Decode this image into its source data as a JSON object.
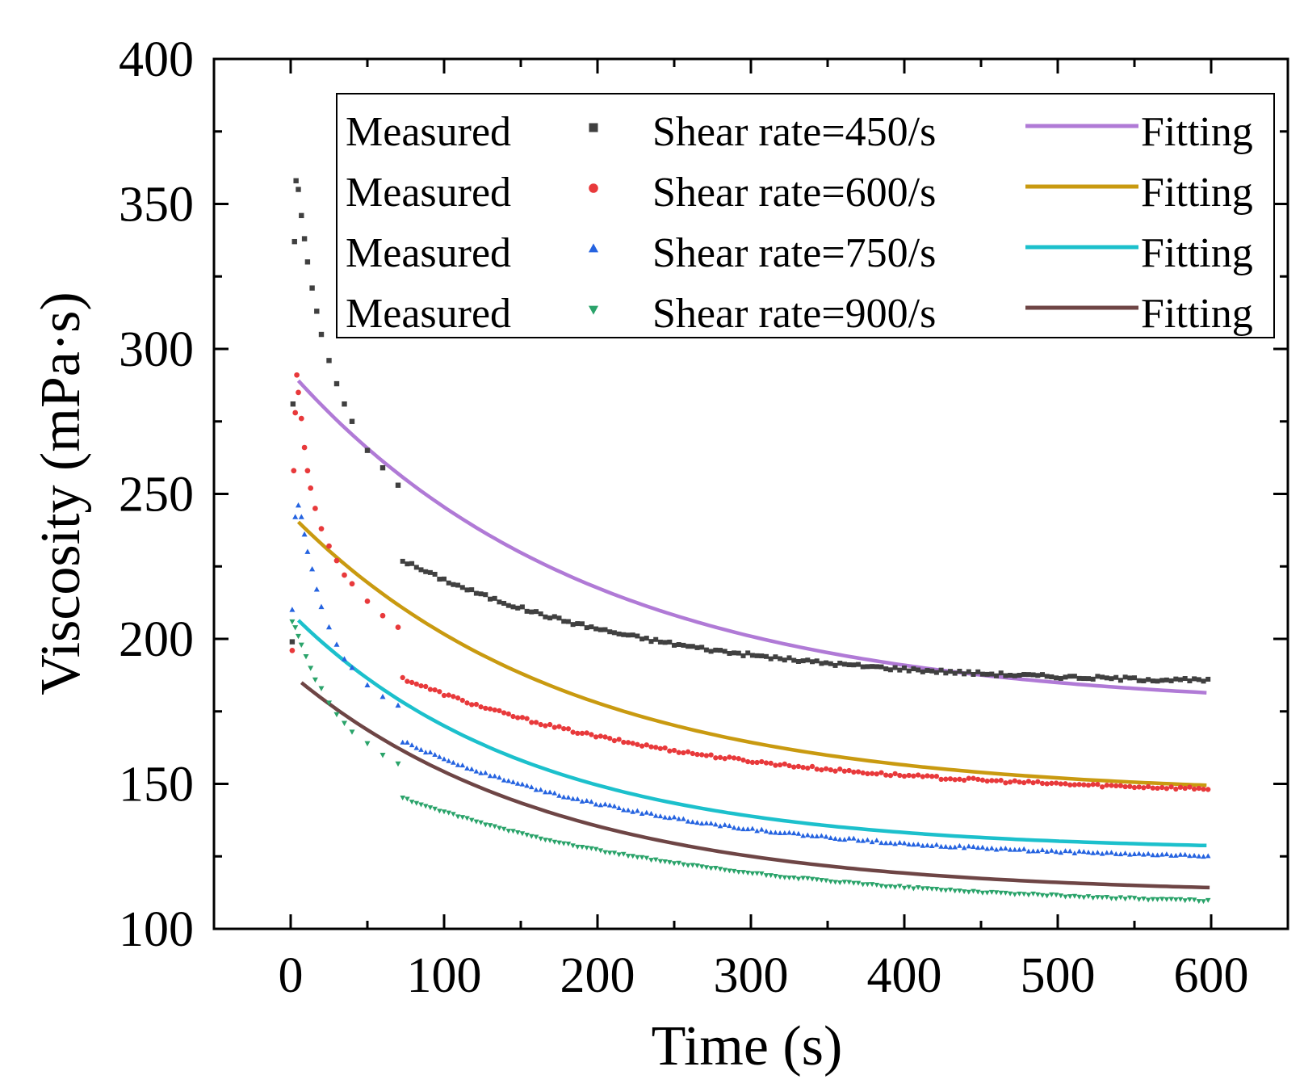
{
  "chart_data": {
    "type": "scatter",
    "title": "",
    "xlabel": "Time (s)",
    "ylabel": "Viscosity (mPa·s)",
    "xlim": [
      -50,
      650
    ],
    "ylim": [
      100,
      400
    ],
    "xticks": [
      0,
      100,
      200,
      300,
      400,
      500,
      600
    ],
    "yticks": [
      100,
      150,
      200,
      250,
      300,
      350,
      400
    ],
    "xtick_labels": [
      "0",
      "100",
      "200",
      "300",
      "400",
      "500",
      "600"
    ],
    "ytick_labels": [
      "100",
      "150",
      "200",
      "250",
      "300",
      "350",
      "400"
    ],
    "grid": false,
    "legend_position": "top-right",
    "series": [
      {
        "name": "Shear rate=450/s",
        "measured_label": "Measured",
        "fitting_label": "Fitting",
        "marker": "square",
        "marker_color": "#404040",
        "fit_color": "#b07ad6",
        "start_points": [
          [
            1,
            199
          ],
          [
            1.5,
            281
          ],
          [
            2.5,
            337
          ],
          [
            3.5,
            358
          ],
          [
            5,
            355
          ],
          [
            7,
            346
          ],
          [
            9,
            338
          ],
          [
            11,
            330
          ],
          [
            14,
            321
          ],
          [
            17,
            313
          ],
          [
            20,
            305
          ],
          [
            25,
            296
          ],
          [
            30,
            288
          ],
          [
            35,
            281
          ],
          [
            40,
            275
          ],
          [
            50,
            265
          ],
          [
            60,
            259
          ],
          [
            70,
            253
          ]
        ],
        "measured": {
          "a": 184,
          "b": 68,
          "tau": 160,
          "noise": 1.2
        },
        "fit_start": 5,
        "fitting": {
          "c": 176,
          "d": 116,
          "tau": 195
        }
      },
      {
        "name": "Shear rate=600/s",
        "measured_label": "Measured",
        "fitting_label": "Fitting",
        "marker": "circle",
        "marker_color": "#e8393b",
        "fit_color": "#c99a10",
        "start_points": [
          [
            1,
            196
          ],
          [
            2,
            258
          ],
          [
            3,
            278
          ],
          [
            4,
            291
          ],
          [
            5,
            285
          ],
          [
            7,
            276
          ],
          [
            9,
            266
          ],
          [
            11,
            258
          ],
          [
            13,
            252
          ],
          [
            16,
            245
          ],
          [
            20,
            238
          ],
          [
            25,
            232
          ],
          [
            30,
            227
          ],
          [
            35,
            222
          ],
          [
            40,
            219
          ],
          [
            50,
            213
          ],
          [
            60,
            208
          ],
          [
            70,
            204
          ]
        ],
        "measured": {
          "a": 146,
          "b": 60,
          "tau": 185,
          "noise": 1.0
        },
        "fit_start": 5,
        "fitting": {
          "c": 146,
          "d": 97,
          "tau": 180
        }
      },
      {
        "name": "Shear rate=750/s",
        "measured_label": "Measured",
        "fitting_label": "Fitting",
        "marker": "triangle-up",
        "marker_color": "#2563e0",
        "fit_color": "#1cc0cc",
        "start_points": [
          [
            1,
            210
          ],
          [
            3,
            242
          ],
          [
            5,
            246
          ],
          [
            7,
            242
          ],
          [
            9,
            236
          ],
          [
            11,
            230
          ],
          [
            14,
            224
          ],
          [
            17,
            217
          ],
          [
            20,
            211
          ],
          [
            25,
            204
          ],
          [
            30,
            198
          ],
          [
            35,
            193
          ],
          [
            40,
            190
          ],
          [
            50,
            184
          ],
          [
            60,
            180
          ],
          [
            70,
            177
          ]
        ],
        "measured": {
          "a": 123,
          "b": 63,
          "tau": 175,
          "noise": 0.8
        },
        "fit_start": 5,
        "fitting": {
          "c": 127,
          "d": 82,
          "tau": 155
        }
      },
      {
        "name": "Shear rate=900/s",
        "measured_label": "Measured",
        "fitting_label": "Fitting",
        "marker": "triangle-down",
        "marker_color": "#2aa36a",
        "fit_color": "#6e4545",
        "start_points": [
          [
            1,
            206
          ],
          [
            3,
            204
          ],
          [
            5,
            201
          ],
          [
            7,
            198
          ],
          [
            10,
            194
          ],
          [
            13,
            190
          ],
          [
            16,
            186
          ],
          [
            20,
            183
          ],
          [
            25,
            178
          ],
          [
            30,
            174
          ],
          [
            35,
            171
          ],
          [
            40,
            168
          ],
          [
            50,
            164
          ],
          [
            60,
            160
          ],
          [
            70,
            157
          ]
        ],
        "measured": {
          "a": 107,
          "b": 55,
          "tau": 200,
          "noise": 0.6
        },
        "fit_start": 7,
        "fitting": {
          "c": 112,
          "d": 76,
          "tau": 170
        }
      }
    ]
  }
}
